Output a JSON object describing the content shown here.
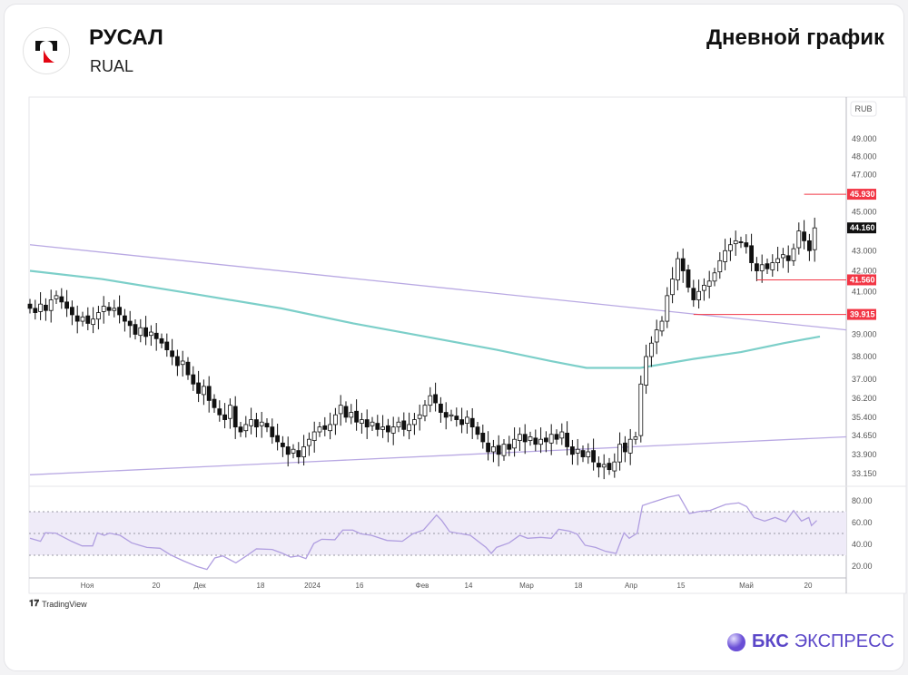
{
  "header": {
    "company": "РУСАЛ",
    "ticker": "RUAL",
    "chart_type_label": "Дневной график"
  },
  "footer": {
    "tradingview": "TradingView",
    "brand_bold": "БКС",
    "brand_light": "ЭКСПРЕСС"
  },
  "colors": {
    "ma": "#7ccfc9",
    "trend": "#b9a9e3",
    "level": "#f23645",
    "rsi": "#b09ee0",
    "rsi_band": "#efebf8"
  },
  "chart_data": {
    "type": "candlestick",
    "currency_label": "RUB",
    "price_ticks": [
      "49.000",
      "48.000",
      "47.000",
      "45.000",
      "43.000",
      "42.000",
      "41.000",
      "39.000",
      "38.000",
      "37.000",
      "36.200",
      "35.400",
      "34.650",
      "33.900",
      "33.150"
    ],
    "price_tick_values": [
      49,
      48,
      47,
      45,
      43,
      42,
      41,
      39,
      38,
      37,
      36.2,
      35.4,
      34.65,
      33.9,
      33.15
    ],
    "last_price": {
      "value": 44.16,
      "label": "44.160"
    },
    "levels": [
      {
        "value": 45.93,
        "label": "45.930",
        "from_index": 147
      },
      {
        "value": 41.56,
        "label": "41.560",
        "from_index": 138
      },
      {
        "value": 39.915,
        "label": "39.915",
        "from_index": 126
      }
    ],
    "closes": [
      40.2,
      40.0,
      40.4,
      40.1,
      40.6,
      40.8,
      40.5,
      40.2,
      39.9,
      39.6,
      39.8,
      39.5,
      39.7,
      40.0,
      40.3,
      40.1,
      40.2,
      39.9,
      39.6,
      39.4,
      39.0,
      39.3,
      38.9,
      39.1,
      38.8,
      38.6,
      38.3,
      38.0,
      37.6,
      37.8,
      37.2,
      36.8,
      36.4,
      36.7,
      36.1,
      35.8,
      35.5,
      35.3,
      35.9,
      35.0,
      34.8,
      35.1,
      35.3,
      35.0,
      35.2,
      35.0,
      34.6,
      34.4,
      34.2,
      33.9,
      34.1,
      33.8,
      34.2,
      34.5,
      34.8,
      35.0,
      34.9,
      35.1,
      35.5,
      35.9,
      35.4,
      35.6,
      35.2,
      35.3,
      35.0,
      35.2,
      34.9,
      35.0,
      34.8,
      35.0,
      35.2,
      34.9,
      35.1,
      35.3,
      35.5,
      35.9,
      36.3,
      36.0,
      35.6,
      35.4,
      35.5,
      35.3,
      35.1,
      35.4,
      35.0,
      34.7,
      34.4,
      34.0,
      34.2,
      33.9,
      34.3,
      34.1,
      34.5,
      34.7,
      34.4,
      34.6,
      34.3,
      34.5,
      34.4,
      34.7,
      34.5,
      34.8,
      34.2,
      33.9,
      34.1,
      33.8,
      34.0,
      33.6,
      33.4,
      33.5,
      33.3,
      33.6,
      34.3,
      34.0,
      34.5,
      34.6,
      36.8,
      38.0,
      38.6,
      39.2,
      39.6,
      40.8,
      41.6,
      42.6,
      42.0,
      41.2,
      40.6,
      41.0,
      41.3,
      41.5,
      41.9,
      42.5,
      43.0,
      43.3,
      43.5,
      43.4,
      43.2,
      42.4,
      42.0,
      42.3,
      42.1,
      42.4,
      42.6,
      42.8,
      42.5,
      43.1,
      44.0,
      43.5,
      43.0,
      44.16
    ],
    "ma_points": [
      [
        0,
        42.0
      ],
      [
        20,
        41.6
      ],
      [
        45,
        40.9
      ],
      [
        70,
        40.2
      ],
      [
        90,
        39.5
      ],
      [
        110,
        38.9
      ],
      [
        130,
        38.3
      ],
      [
        145,
        37.8
      ],
      [
        155,
        37.5
      ],
      [
        170,
        37.5
      ],
      [
        185,
        37.9
      ],
      [
        198,
        38.2
      ],
      [
        210,
        38.6
      ],
      [
        220,
        38.9
      ]
    ],
    "ma_index_scale": 0.6818,
    "trendlines": [
      {
        "from": [
          0,
          43.3
        ],
        "to": [
          155,
          39.2
        ]
      },
      {
        "from": [
          0,
          33.1
        ],
        "to": [
          155,
          34.6
        ]
      }
    ],
    "x_labels": [
      "Ноя",
      "20",
      "Дек",
      "18",
      "2024",
      "16",
      "Фев",
      "14",
      "Мар",
      "18",
      "Апр",
      "15",
      "Май",
      "20"
    ],
    "rsi": {
      "ticks": [
        "80.00",
        "60.00",
        "40.00",
        "20.00"
      ],
      "tick_values": [
        80,
        60,
        40,
        20
      ],
      "band": [
        30,
        70
      ],
      "points": [
        [
          0,
          45.6
        ],
        [
          2,
          42.8
        ],
        [
          2.9,
          50.6
        ],
        [
          4.9,
          50.3
        ],
        [
          7.9,
          42.8
        ],
        [
          9.9,
          38.6
        ],
        [
          11.9,
          38.6
        ],
        [
          12.8,
          50.6
        ],
        [
          14.1,
          48.3
        ],
        [
          15.1,
          50.3
        ],
        [
          17.1,
          48.3
        ],
        [
          19.3,
          41.4
        ],
        [
          20.8,
          39.2
        ],
        [
          22.2,
          37.2
        ],
        [
          24.7,
          36.4
        ],
        [
          26.7,
          30.3
        ],
        [
          29.2,
          24.7
        ],
        [
          31.7,
          19.7
        ],
        [
          33.6,
          17
        ],
        [
          35.1,
          27.5
        ],
        [
          36.6,
          29.4
        ],
        [
          39.1,
          23
        ],
        [
          41.1,
          29.4
        ],
        [
          43,
          35.9
        ],
        [
          46,
          35.3
        ],
        [
          48,
          31.7
        ],
        [
          49.5,
          28.3
        ],
        [
          51,
          29.4
        ],
        [
          52.4,
          26.9
        ],
        [
          53.9,
          40.8
        ],
        [
          55.4,
          44.7
        ],
        [
          57.9,
          44.2
        ],
        [
          59.4,
          53.1
        ],
        [
          61.3,
          53.1
        ],
        [
          62.8,
          49.7
        ],
        [
          64.8,
          48.3
        ],
        [
          67.8,
          43.6
        ],
        [
          70.7,
          42.8
        ],
        [
          72.7,
          49.7
        ],
        [
          74.7,
          53.1
        ],
        [
          77.2,
          66.9
        ],
        [
          78.2,
          61.9
        ],
        [
          79.7,
          51.6
        ],
        [
          83.6,
          48.3
        ],
        [
          86.6,
          37.2
        ],
        [
          87.6,
          31.7
        ],
        [
          88.6,
          37.2
        ],
        [
          91,
          41.4
        ],
        [
          93,
          48.3
        ],
        [
          94.5,
          45.6
        ],
        [
          97,
          46.4
        ],
        [
          99,
          45.6
        ],
        [
          100.4,
          53.9
        ],
        [
          102.4,
          52.2
        ],
        [
          103.9,
          49.4
        ],
        [
          105.4,
          39.2
        ],
        [
          107.4,
          37.2
        ],
        [
          109.3,
          33.6
        ],
        [
          111.3,
          31.7
        ],
        [
          112.8,
          50.6
        ],
        [
          113.8,
          45.6
        ],
        [
          115.3,
          50.3
        ],
        [
          116.3,
          75.6
        ],
        [
          118.3,
          78.9
        ],
        [
          121.2,
          83.3
        ],
        [
          123.2,
          85.3
        ],
        [
          125.2,
          68.3
        ],
        [
          127.2,
          70.3
        ],
        [
          129.1,
          71.1
        ],
        [
          132.1,
          76.7
        ],
        [
          134.6,
          78.1
        ],
        [
          136.1,
          74.7
        ],
        [
          137.5,
          64.7
        ],
        [
          139.5,
          61.4
        ],
        [
          141.5,
          64.7
        ],
        [
          143.5,
          60.8
        ],
        [
          145,
          71.1
        ],
        [
          146.5,
          61.4
        ],
        [
          147.9,
          64.7
        ],
        [
          148.4,
          57.2
        ],
        [
          149.4,
          61.9
        ]
      ]
    }
  }
}
